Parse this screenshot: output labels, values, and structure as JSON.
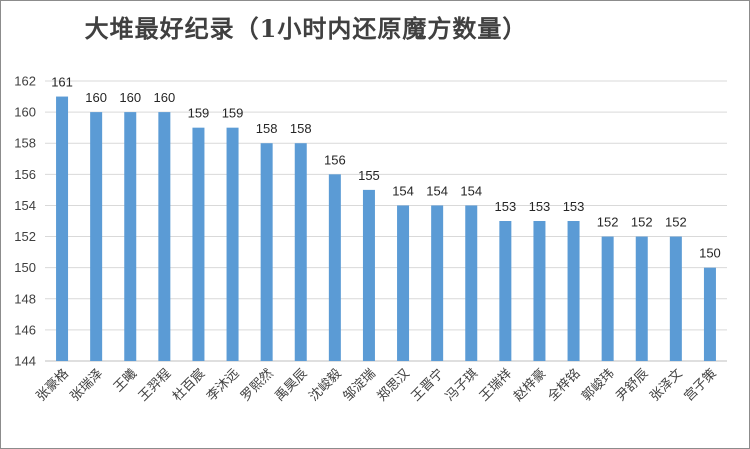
{
  "chart_data": {
    "type": "bar",
    "title": "大堆最好纪录（1小时内还原魔方数量）",
    "xlabel": "",
    "ylabel": "",
    "ylim": [
      144,
      162
    ],
    "ytick_step": 2,
    "grid": true,
    "legend": "none",
    "bar_color": "#5b9bd5",
    "grid_color": "#d9d9d9",
    "categories": [
      "张豪格",
      "张瑞泽",
      "王曦",
      "王羿程",
      "杜百宸",
      "李沐远",
      "罗熙然",
      "禹昊辰",
      "沈峻毅",
      "邹淀瑞",
      "郑思汉",
      "王晋宁",
      "冯子琪",
      "王瑞祥",
      "赵梓豪",
      "全梓铭",
      "郭峻玮",
      "尹舒辰",
      "张泽文",
      "宫子策"
    ],
    "values": [
      161,
      160,
      160,
      160,
      159,
      159,
      158,
      158,
      156,
      155,
      154,
      154,
      154,
      153,
      153,
      153,
      152,
      152,
      152,
      150
    ]
  }
}
